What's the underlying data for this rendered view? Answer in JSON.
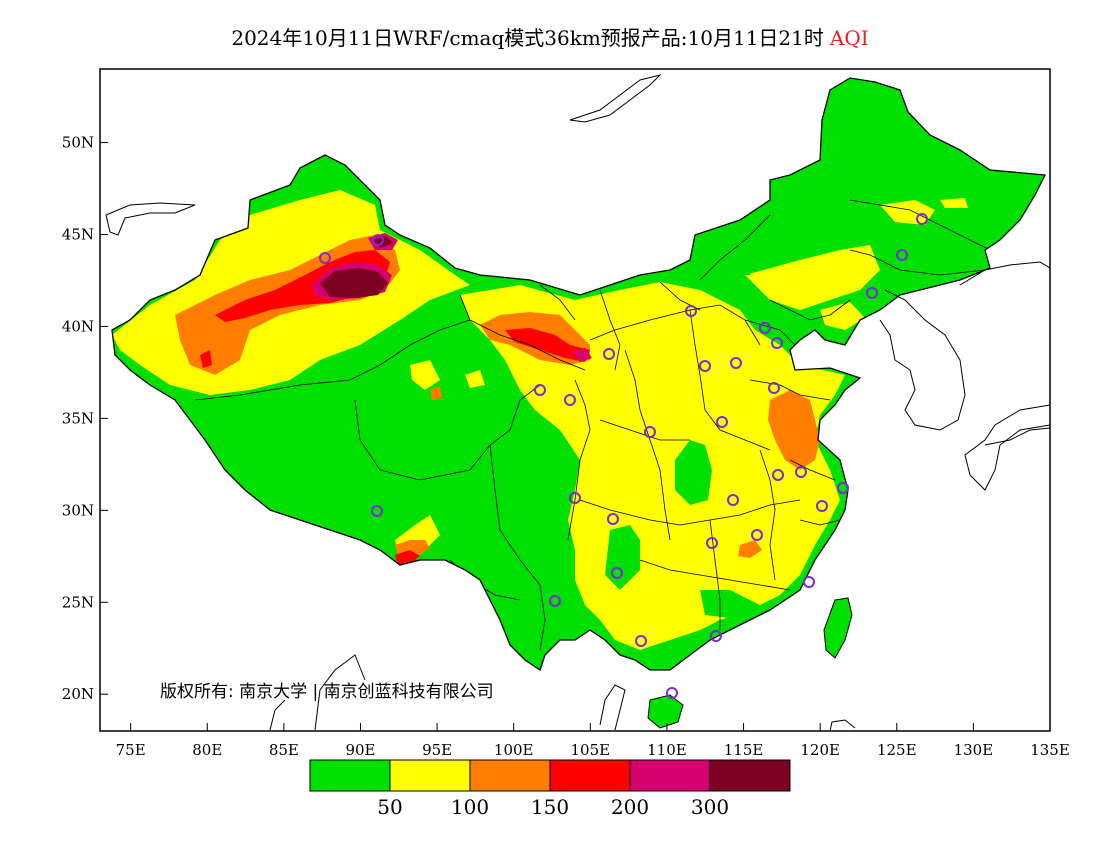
{
  "header": {
    "title": "2024年10月11日WRF/cmaq模式36km预报产品:10月11日21时",
    "variable": "AQI"
  },
  "map": {
    "region": "China",
    "lon_range": [
      73,
      135
    ],
    "lat_range": [
      18,
      54
    ],
    "x_ticks": [
      "75E",
      "80E",
      "85E",
      "90E",
      "95E",
      "100E",
      "105E",
      "110E",
      "115E",
      "120E",
      "125E",
      "130E",
      "135E"
    ],
    "y_ticks": [
      "20N",
      "25N",
      "30N",
      "35N",
      "40N",
      "45N",
      "50N"
    ],
    "copyright": "版权所有: 南京大学 | 南京创蓝科技有限公司",
    "colors": {
      "good": "#00e000",
      "moderate": "#ffff00",
      "usg": "#ff7e00",
      "unhealthy": "#ff0000",
      "very_unhealthy": "#d6006e",
      "hazardous": "#7e0023",
      "station_marker": "#7b2bd8"
    }
  },
  "legend": {
    "colors": [
      "#00e000",
      "#ffff00",
      "#ff7e00",
      "#ff0000",
      "#d6006e",
      "#7e0023"
    ],
    "labels": [
      "50",
      "100",
      "150",
      "200",
      "300"
    ]
  }
}
